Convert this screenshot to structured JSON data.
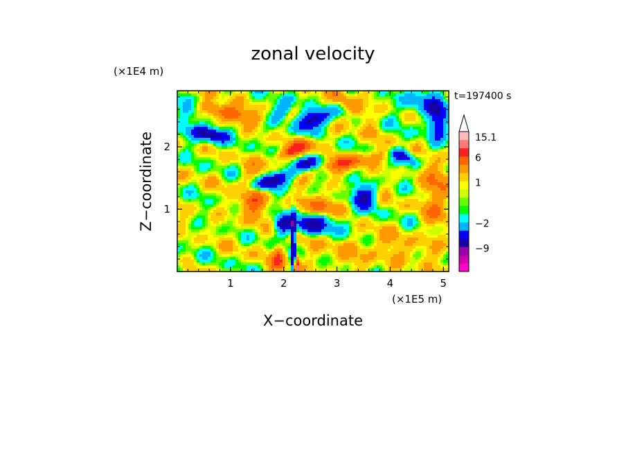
{
  "chart_data": {
    "type": "heatmap",
    "title": "zonal velocity",
    "time_label": "t=197400 s",
    "xlabel": "X−coordinate",
    "ylabel": "Z−coordinate",
    "x_unit_label": "(×1E5 m)",
    "y_unit_label": "(×1E4 m)",
    "xlim": [
      0,
      5.1
    ],
    "ylim": [
      0,
      2.9
    ],
    "x_ticks": [
      1,
      2,
      3,
      4,
      5
    ],
    "x_tick_labels": [
      "1",
      "2",
      "3",
      "4",
      "5"
    ],
    "y_ticks": [
      1,
      2
    ],
    "y_tick_labels": [
      "1",
      "2"
    ],
    "colorbar": {
      "levels": [
        -15,
        -12,
        -9,
        -6,
        -4,
        -2,
        -1,
        -0.5,
        0,
        0.5,
        1,
        2,
        4,
        6,
        9,
        12,
        15.1
      ],
      "colors": [
        "#ff00cc",
        "#cc00aa",
        "#9900aa",
        "#1800a8",
        "#0000ff",
        "#00b4ff",
        "#00ffff",
        "#00ff00",
        "#66ff00",
        "#ccff00",
        "#ffff00",
        "#ffd000",
        "#ff9900",
        "#ff6600",
        "#ff2020",
        "#ff7a7a",
        "#ffbbbb"
      ],
      "labels": [
        {
          "text": "15.1",
          "value": 15.1
        },
        {
          "text": "6",
          "value": 6
        },
        {
          "text": "1",
          "value": 1
        },
        {
          "text": "−2",
          "value": -2
        },
        {
          "text": "−9",
          "value": -9
        }
      ]
    }
  }
}
